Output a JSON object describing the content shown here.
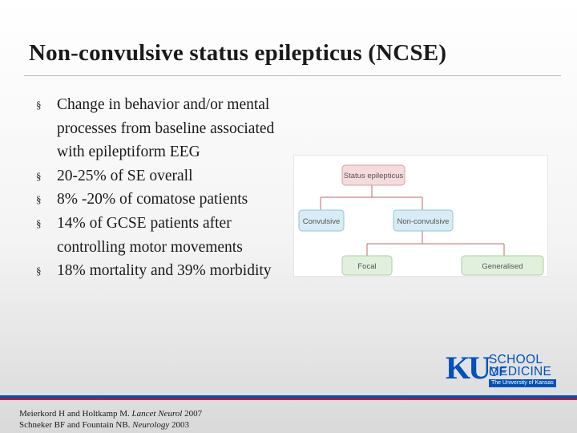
{
  "slide": {
    "title": "Non-convulsive status epilepticus (NCSE)",
    "bullet_marker": "§",
    "bullets": [
      "Change in behavior and/or mental processes from baseline associated with epileptiform EEG",
      "20-25% of SE overall",
      "8% -20% of comatose patients",
      "14% of GCSE patients after controlling motor movements",
      "18% mortality and 39% morbidity"
    ]
  },
  "diagram": {
    "root": "Status epilepticus",
    "level1_left": "Convulsive",
    "level1_right": "Non-convulsive",
    "level2_left": "Focal",
    "level2_right": "Generalised",
    "colors": {
      "root_fill": "#f4dcdc",
      "root_stroke": "#d9a0a0",
      "blue_fill": "#d7ecf5",
      "blue_stroke": "#8fc3d8",
      "green_fill": "#e1f0dc",
      "green_stroke": "#a9d29a",
      "connector": "#c06a6a"
    }
  },
  "logo": {
    "ku": "KU",
    "line1": "SCHOOL OF",
    "line2": "MEDICINE",
    "sub": "The University of Kansas"
  },
  "references": {
    "ref1_authors": "Meierkord H and Holtkamp M. ",
    "ref1_journal": "Lancet Neurol",
    "ref1_year": " 2007",
    "ref2_authors": "Schneker BF and Fountain NB. ",
    "ref2_journal": "Neurology",
    "ref2_year": " 2003"
  },
  "theme": {
    "ku_blue": "#0051ba",
    "ku_red": "#e8000d"
  }
}
